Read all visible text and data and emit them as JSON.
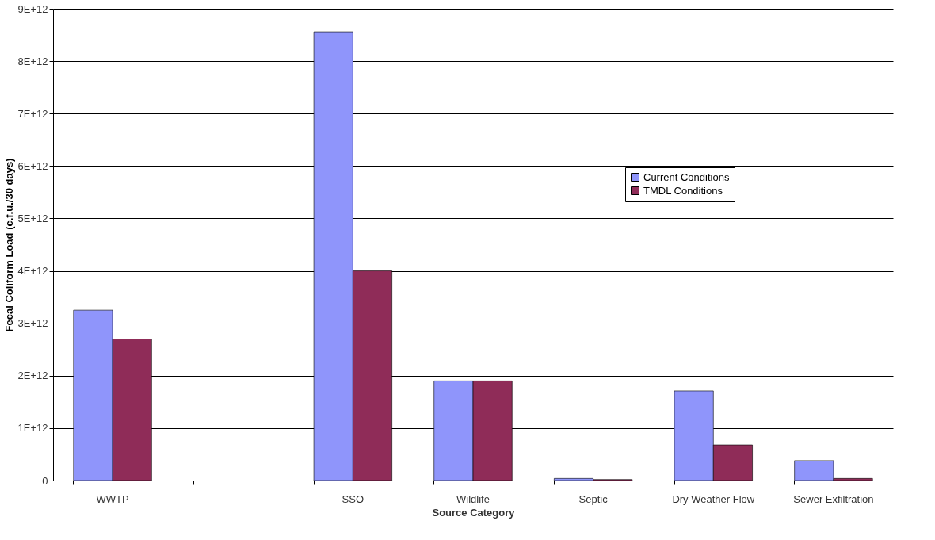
{
  "chart_data": {
    "type": "bar",
    "xlabel": "Source Category",
    "ylabel": "Fecal Coliform Load (c.f.u./30 days)",
    "categories": [
      "WWTP",
      null,
      "SSO",
      "Wildlife",
      "Septic",
      "Dry Weather Flow",
      "Sewer Exfiltration"
    ],
    "series": [
      {
        "name": "Current Conditions",
        "color": "#8f95fb",
        "values": [
          3250000000000.0,
          null,
          8560000000000.0,
          1900000000000.0,
          40000000000.0,
          1710000000000.0,
          380000000000.0
        ]
      },
      {
        "name": "TMDL Conditions",
        "color": "#8f2c58",
        "values": [
          2700000000000.0,
          null,
          4000000000000.0,
          1900000000000.0,
          20000000000.0,
          680000000000.0,
          40000000000.0
        ]
      }
    ],
    "ylim": [
      0,
      9000000000000.0
    ],
    "yticks": [
      0,
      {
        "value": 1000000000000.0,
        "label": "1E+12"
      },
      {
        "value": 2000000000000.0,
        "label": "2E+12"
      },
      {
        "value": 3000000000000.0,
        "label": "3E+12"
      },
      {
        "value": 4000000000000.0,
        "label": "4E+12"
      },
      {
        "value": 5000000000000.0,
        "label": "5E+12"
      },
      {
        "value": 6000000000000.0,
        "label": "6E+12"
      },
      {
        "value": 7000000000000.0,
        "label": "7E+12"
      },
      {
        "value": 8000000000000.0,
        "label": "8E+12"
      },
      {
        "value": 9000000000000.0,
        "label": "9E+12"
      }
    ],
    "grid": "y",
    "legend": "top right"
  }
}
